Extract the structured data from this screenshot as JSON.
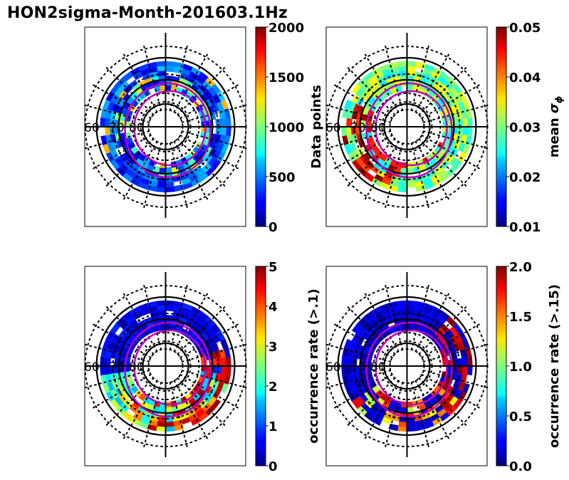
{
  "figure": {
    "title": "HON2sigma-Month-201603.1Hz",
    "lat_labels": [
      "60",
      "70",
      "80"
    ]
  },
  "chart_data": [
    {
      "type": "heatmap",
      "projection": "polar (magnetic latitude / MLT)",
      "panel": "top-left",
      "colorbar_label": "Data points",
      "colorbar_range": [
        0,
        2000
      ],
      "colorbar_ticks": [
        "0",
        "500",
        "1000",
        "1500",
        "2000"
      ],
      "colormap": "jet"
    },
    {
      "type": "heatmap",
      "projection": "polar (magnetic latitude / MLT)",
      "panel": "top-right",
      "colorbar_label": "mean σ",
      "colorbar_label_subscript": "ϕ",
      "colorbar_range": [
        0.01,
        0.05
      ],
      "colorbar_ticks": [
        "0.01",
        "0.02",
        "0.03",
        "0.04",
        "0.05"
      ],
      "colormap": "jet"
    },
    {
      "type": "heatmap",
      "projection": "polar (magnetic latitude / MLT)",
      "panel": "bottom-left",
      "colorbar_label": "occurrence rate (>.1)",
      "colorbar_range": [
        0,
        5
      ],
      "colorbar_ticks": [
        "0",
        "1",
        "2",
        "3",
        "4",
        "5"
      ],
      "colormap": "jet"
    },
    {
      "type": "heatmap",
      "projection": "polar (magnetic latitude / MLT)",
      "panel": "bottom-right",
      "colorbar_label": "occurrence rate (>.15)",
      "colorbar_range": [
        0.0,
        2.0
      ],
      "colorbar_ticks": [
        "0.0",
        "0.5",
        "1.0",
        "1.5",
        "2.0"
      ],
      "colormap": "jet"
    }
  ]
}
